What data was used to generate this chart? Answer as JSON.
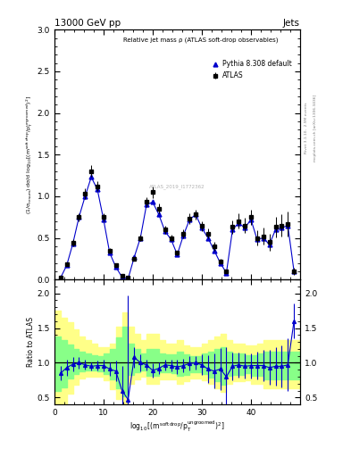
{
  "title_top": "13000 GeV pp",
  "title_top_right": "Jets",
  "plot_title": "Relative jet mass ρ (ATLAS soft-drop observables)",
  "ylabel_main": "(1/σ$_{\\rm resum}$) dσ/d log$_{10}$[(m$^{\\rm soft\\,drop}$/p$_{\\rm T}^{\\rm ungroomed}$)$^2$]",
  "ylabel_ratio": "Ratio to ATLAS",
  "right_label_top": "Rivet 3.1.10,  2.9M events",
  "right_label_bottom": "mcplots.cern.ch [arXiv:1306.3436]",
  "watermark": "ATLAS_2019_I1772362",
  "legend_atlas": "ATLAS",
  "legend_pythia": "Pythia 8.308 default",
  "xlim": [
    0,
    50
  ],
  "ylim_main": [
    0,
    3.0
  ],
  "ylim_ratio": [
    0.4,
    2.2
  ],
  "atlas_x": [
    1.25,
    2.5,
    3.75,
    5.0,
    6.25,
    7.5,
    8.75,
    10.0,
    11.25,
    12.5,
    13.75,
    15.0,
    16.25,
    17.5,
    18.75,
    20.0,
    21.25,
    22.5,
    23.75,
    25.0,
    26.25,
    27.5,
    28.75,
    30.0,
    31.25,
    32.5,
    33.75,
    35.0,
    36.25,
    37.5,
    38.75,
    40.0,
    41.25,
    42.5,
    43.75,
    45.0,
    46.25,
    47.5,
    48.75
  ],
  "atlas_y": [
    0.02,
    0.18,
    0.44,
    0.75,
    1.03,
    1.3,
    1.12,
    0.75,
    0.35,
    0.17,
    0.05,
    0.02,
    0.25,
    0.5,
    0.93,
    1.05,
    0.85,
    0.6,
    0.5,
    0.32,
    0.55,
    0.73,
    0.78,
    0.64,
    0.55,
    0.4,
    0.22,
    0.1,
    0.63,
    0.7,
    0.65,
    0.75,
    0.5,
    0.52,
    0.45,
    0.63,
    0.65,
    0.67,
    0.1
  ],
  "atlas_yerr": [
    0.005,
    0.02,
    0.04,
    0.05,
    0.06,
    0.07,
    0.06,
    0.05,
    0.03,
    0.02,
    0.01,
    0.01,
    0.02,
    0.04,
    0.06,
    0.07,
    0.06,
    0.05,
    0.04,
    0.03,
    0.05,
    0.06,
    0.06,
    0.06,
    0.06,
    0.05,
    0.03,
    0.02,
    0.08,
    0.09,
    0.09,
    0.09,
    0.09,
    0.1,
    0.1,
    0.12,
    0.13,
    0.15,
    0.04
  ],
  "pythia_x": [
    1.25,
    2.5,
    3.75,
    5.0,
    6.25,
    7.5,
    8.75,
    10.0,
    11.25,
    12.5,
    13.75,
    15.0,
    16.25,
    17.5,
    18.75,
    20.0,
    21.25,
    22.5,
    23.75,
    25.0,
    26.25,
    27.5,
    28.75,
    30.0,
    31.25,
    32.5,
    33.75,
    35.0,
    36.25,
    37.5,
    38.75,
    40.0,
    41.25,
    42.5,
    43.75,
    45.0,
    46.25,
    47.5,
    48.75
  ],
  "pythia_y": [
    0.02,
    0.17,
    0.43,
    0.75,
    1.0,
    1.23,
    1.08,
    0.72,
    0.32,
    0.15,
    0.03,
    0.01,
    0.27,
    0.5,
    0.9,
    0.93,
    0.78,
    0.58,
    0.48,
    0.3,
    0.53,
    0.72,
    0.78,
    0.62,
    0.5,
    0.35,
    0.2,
    0.08,
    0.6,
    0.68,
    0.62,
    0.72,
    0.48,
    0.5,
    0.42,
    0.6,
    0.62,
    0.65,
    0.1
  ],
  "ratio_x": [
    1.25,
    2.5,
    3.75,
    5.0,
    6.25,
    7.5,
    8.75,
    10.0,
    11.25,
    12.5,
    13.75,
    15.0,
    16.25,
    17.5,
    18.75,
    20.0,
    21.25,
    22.5,
    23.75,
    25.0,
    26.25,
    27.5,
    28.75,
    30.0,
    31.25,
    32.5,
    33.75,
    35.0,
    36.25,
    37.5,
    38.75,
    40.0,
    41.25,
    42.5,
    43.75,
    45.0,
    46.25,
    47.5,
    48.75
  ],
  "ratio_y": [
    0.85,
    0.93,
    0.98,
    1.0,
    0.97,
    0.95,
    0.96,
    0.96,
    0.91,
    0.88,
    0.6,
    0.47,
    1.08,
    1.0,
    0.97,
    0.89,
    0.92,
    0.97,
    0.96,
    0.94,
    0.96,
    0.99,
    1.0,
    0.97,
    0.91,
    0.88,
    0.91,
    0.8,
    0.95,
    0.97,
    0.95,
    0.96,
    0.96,
    0.96,
    0.93,
    0.95,
    0.95,
    0.97,
    1.6
  ],
  "ratio_yerr_lo": [
    0.1,
    0.12,
    0.1,
    0.08,
    0.07,
    0.06,
    0.07,
    0.08,
    0.1,
    0.15,
    0.2,
    0.08,
    0.15,
    0.12,
    0.08,
    0.1,
    0.08,
    0.08,
    0.08,
    0.1,
    0.1,
    0.1,
    0.1,
    0.15,
    0.2,
    0.25,
    0.3,
    0.42,
    0.2,
    0.18,
    0.18,
    0.18,
    0.2,
    0.22,
    0.25,
    0.28,
    0.3,
    0.38,
    0.25
  ],
  "ratio_yerr_hi": [
    0.1,
    0.12,
    0.1,
    0.08,
    0.07,
    0.06,
    0.07,
    0.08,
    0.1,
    0.15,
    0.35,
    1.5,
    0.15,
    0.12,
    0.08,
    0.1,
    0.08,
    0.08,
    0.08,
    0.1,
    0.1,
    0.1,
    0.1,
    0.15,
    0.2,
    0.25,
    0.3,
    0.42,
    0.2,
    0.18,
    0.18,
    0.18,
    0.2,
    0.22,
    0.25,
    0.28,
    0.3,
    0.38,
    0.25
  ],
  "band_x_edges": [
    0,
    1.25,
    2.5,
    3.75,
    5.0,
    6.25,
    7.5,
    8.75,
    10.0,
    11.25,
    12.5,
    13.75,
    15.0,
    16.25,
    17.5,
    18.75,
    20.0,
    21.25,
    22.5,
    23.75,
    25.0,
    26.25,
    27.5,
    28.75,
    30.0,
    31.25,
    32.5,
    33.75,
    35.0,
    36.25,
    37.5,
    38.75,
    40.0,
    41.25,
    42.5,
    43.75,
    45.0,
    46.25,
    47.5,
    48.75,
    50.0
  ],
  "band_yellow_lo": [
    0.4,
    0.42,
    0.55,
    0.68,
    0.78,
    0.8,
    0.8,
    0.8,
    0.75,
    0.62,
    0.48,
    0.38,
    0.7,
    0.76,
    0.8,
    0.7,
    0.7,
    0.76,
    0.76,
    0.76,
    0.7,
    0.73,
    0.78,
    0.78,
    0.75,
    0.7,
    0.63,
    0.58,
    0.7,
    0.73,
    0.73,
    0.75,
    0.7,
    0.7,
    0.63,
    0.63,
    0.63,
    0.63,
    0.63,
    0.63,
    0.63
  ],
  "band_yellow_hi": [
    1.75,
    1.65,
    1.58,
    1.48,
    1.38,
    1.33,
    1.28,
    1.23,
    1.23,
    1.28,
    1.52,
    1.72,
    1.52,
    1.42,
    1.33,
    1.42,
    1.42,
    1.33,
    1.28,
    1.28,
    1.33,
    1.25,
    1.23,
    1.23,
    1.28,
    1.33,
    1.38,
    1.42,
    1.33,
    1.28,
    1.28,
    1.25,
    1.25,
    1.28,
    1.33,
    1.33,
    1.33,
    1.33,
    1.33,
    1.33,
    1.33
  ],
  "band_green_lo": [
    0.6,
    0.65,
    0.77,
    0.84,
    0.88,
    0.89,
    0.89,
    0.88,
    0.84,
    0.76,
    0.63,
    0.52,
    0.83,
    0.86,
    0.89,
    0.81,
    0.81,
    0.86,
    0.86,
    0.85,
    0.81,
    0.83,
    0.86,
    0.86,
    0.84,
    0.79,
    0.73,
    0.69,
    0.81,
    0.83,
    0.83,
    0.85,
    0.81,
    0.81,
    0.76,
    0.76,
    0.76,
    0.76,
    0.76,
    0.76,
    0.76
  ],
  "band_green_hi": [
    1.38,
    1.33,
    1.26,
    1.2,
    1.16,
    1.13,
    1.11,
    1.1,
    1.13,
    1.2,
    1.36,
    1.52,
    1.28,
    1.2,
    1.14,
    1.2,
    1.2,
    1.14,
    1.12,
    1.12,
    1.16,
    1.12,
    1.1,
    1.1,
    1.13,
    1.16,
    1.2,
    1.23,
    1.16,
    1.13,
    1.13,
    1.11,
    1.11,
    1.13,
    1.16,
    1.16,
    1.16,
    1.16,
    1.16,
    1.16,
    1.16
  ],
  "main_color": "#0000cc",
  "atlas_color": "black",
  "background_color": "white",
  "yellow_color": "#ffff88",
  "green_color": "#88ff88"
}
